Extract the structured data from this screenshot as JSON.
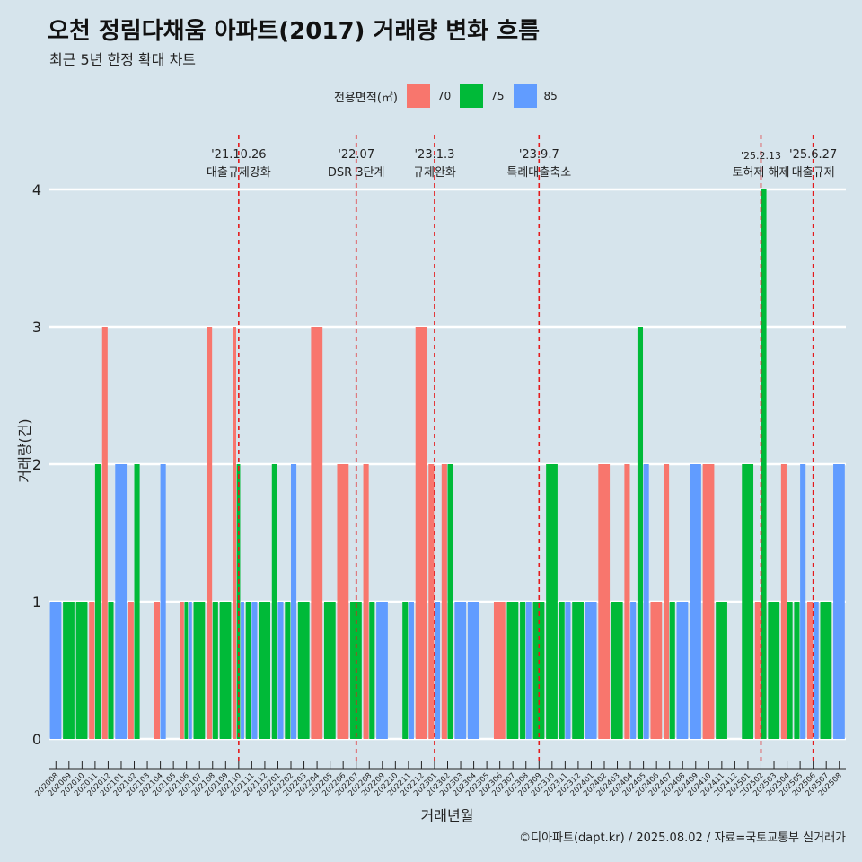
{
  "title": "오천 정림다채움 아파트(2017) 거래량 변화 흐름",
  "subtitle": "최근 5년 한정 확대 차트",
  "caption": "©디아파트(dapt.kr) / 2025.08.02 / 자료=국토교통부 실거래가",
  "legend": {
    "title": "전용면적(㎡)",
    "items": [
      {
        "label": "70",
        "color": "#f8766d"
      },
      {
        "label": "75",
        "color": "#00ba38"
      },
      {
        "label": "85",
        "color": "#619cff"
      }
    ]
  },
  "chart_data": {
    "type": "bar",
    "xlabel": "거래년월",
    "ylabel": "거래량(건)",
    "ylim": [
      0,
      4
    ],
    "yticks": [
      0,
      1,
      2,
      3,
      4
    ],
    "grid": true,
    "legend_position": "top",
    "categories": [
      "202008",
      "202009",
      "202010",
      "202011",
      "202012",
      "202101",
      "202102",
      "202103",
      "202104",
      "202105",
      "202106",
      "202107",
      "202108",
      "202109",
      "202110",
      "202111",
      "202112",
      "202201",
      "202202",
      "202203",
      "202204",
      "202205",
      "202206",
      "202207",
      "202208",
      "202209",
      "202210",
      "202211",
      "202212",
      "202301",
      "202302",
      "202303",
      "202304",
      "202305",
      "202306",
      "202307",
      "202308",
      "202309",
      "202310",
      "202311",
      "202312",
      "202401",
      "202402",
      "202403",
      "202404",
      "202405",
      "202406",
      "202407",
      "202408",
      "202409",
      "202410",
      "202411",
      "202412",
      "202501",
      "202502",
      "202503",
      "202504",
      "202505",
      "202506",
      "202507",
      "202508"
    ],
    "series": [
      {
        "name": "70",
        "color": "#f8766d",
        "values": [
          0,
          0,
          0,
          1,
          3,
          0,
          1,
          0,
          1,
          0,
          1,
          0,
          3,
          0,
          3,
          0,
          0,
          0,
          0,
          0,
          3,
          0,
          2,
          0,
          2,
          0,
          0,
          0,
          3,
          2,
          2,
          0,
          0,
          0,
          1,
          0,
          0,
          0,
          0,
          0,
          0,
          0,
          2,
          0,
          2,
          0,
          1,
          2,
          0,
          0,
          2,
          0,
          0,
          0,
          1,
          0,
          2,
          0,
          1,
          0,
          0
        ]
      },
      {
        "name": "75",
        "color": "#00ba38",
        "values": [
          0,
          1,
          1,
          2,
          1,
          0,
          2,
          0,
          0,
          0,
          1,
          1,
          1,
          1,
          2,
          1,
          1,
          2,
          1,
          1,
          0,
          1,
          0,
          1,
          1,
          0,
          0,
          1,
          0,
          0,
          2,
          0,
          0,
          0,
          0,
          1,
          1,
          1,
          2,
          1,
          1,
          0,
          0,
          1,
          0,
          3,
          0,
          1,
          0,
          0,
          0,
          1,
          0,
          2,
          4,
          1,
          1,
          1,
          0,
          1,
          0
        ]
      },
      {
        "name": "85",
        "color": "#619cff",
        "values": [
          1,
          0,
          0,
          0,
          0,
          2,
          0,
          0,
          2,
          0,
          1,
          0,
          0,
          0,
          1,
          1,
          0,
          1,
          2,
          0,
          0,
          0,
          0,
          0,
          0,
          1,
          0,
          1,
          0,
          1,
          0,
          1,
          1,
          0,
          0,
          0,
          1,
          0,
          0,
          1,
          0,
          1,
          0,
          0,
          1,
          2,
          0,
          0,
          1,
          2,
          0,
          0,
          0,
          0,
          0,
          0,
          0,
          2,
          1,
          0,
          2
        ]
      }
    ],
    "events": [
      {
        "month": "202110",
        "date": "'21.10.26",
        "label": "대출규제강화"
      },
      {
        "month": "202207",
        "date": "'22.07",
        "label": "DSR 3단계"
      },
      {
        "month": "202301",
        "date": "'23.1.3",
        "label": "규제완화"
      },
      {
        "month": "202309",
        "date": "'23.9.7",
        "label": "특례대출축소"
      },
      {
        "month": "202502",
        "date": "'25.2.13",
        "label": "토허제 해제"
      },
      {
        "month": "202506",
        "date": "'25.6.27",
        "label": "대출규제"
      }
    ]
  }
}
